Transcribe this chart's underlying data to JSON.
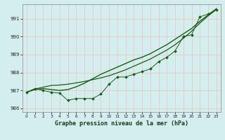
{
  "title": "Graphe pression niveau de la mer (hPa)",
  "bg_color": "#d4eeed",
  "grid_color": "#e8c8c8",
  "line_color": "#1a5c1a",
  "hours": [
    0,
    1,
    2,
    3,
    4,
    5,
    6,
    7,
    8,
    9,
    10,
    11,
    12,
    13,
    14,
    15,
    16,
    17,
    18,
    19,
    20,
    21,
    22,
    23
  ],
  "y_measured": [
    986.9,
    987.1,
    987.0,
    986.9,
    986.85,
    986.45,
    986.55,
    986.55,
    986.55,
    986.8,
    987.35,
    987.75,
    987.75,
    987.9,
    988.05,
    988.2,
    988.6,
    988.85,
    989.2,
    990.0,
    990.1,
    991.1,
    991.25,
    991.5
  ],
  "y_smooth": [
    986.9,
    987.05,
    987.1,
    987.05,
    987.0,
    987.05,
    987.2,
    987.4,
    987.65,
    987.9,
    988.1,
    988.3,
    988.5,
    988.7,
    988.85,
    989.05,
    989.3,
    989.55,
    989.85,
    990.15,
    990.45,
    990.85,
    991.2,
    991.55
  ],
  "y_linear": [
    986.9,
    987.08,
    987.18,
    987.28,
    987.3,
    987.35,
    987.42,
    987.5,
    987.6,
    987.7,
    987.82,
    987.98,
    988.15,
    988.35,
    988.55,
    988.75,
    989.0,
    989.25,
    989.55,
    989.9,
    990.3,
    990.75,
    991.15,
    991.5
  ],
  "ylim": [
    985.8,
    991.8
  ],
  "yticks": [
    986,
    987,
    988,
    989,
    990,
    991
  ],
  "xlim": [
    -0.5,
    23.5
  ],
  "figsize": [
    3.2,
    2.0
  ],
  "dpi": 100
}
